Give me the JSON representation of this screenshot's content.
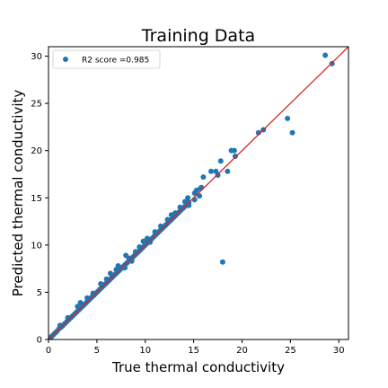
{
  "chart_data": {
    "type": "scatter",
    "title": "Training Data",
    "xlabel": "True thermal conductivity",
    "ylabel": "Predicted thermal conductivity",
    "xlim": [
      0,
      31
    ],
    "ylim": [
      0,
      31
    ],
    "xticks": [
      0,
      5,
      10,
      15,
      20,
      25,
      30
    ],
    "yticks": [
      0,
      5,
      10,
      15,
      20,
      25,
      30
    ],
    "grid": false,
    "legend_position": "top-left",
    "legend_label": "R2 score =0.985",
    "point_color": "#1f77b4",
    "reference_line": {
      "from": [
        0,
        0
      ],
      "to": [
        31,
        31
      ],
      "color": "#d62728"
    },
    "series": [
      {
        "name": "R2 score =0.985",
        "points": [
          [
            0.3,
            0.3
          ],
          [
            0.5,
            0.5
          ],
          [
            0.7,
            0.7
          ],
          [
            0.9,
            0.9
          ],
          [
            1.1,
            1.15
          ],
          [
            1.3,
            1.3
          ],
          [
            1.5,
            1.5
          ],
          [
            1.7,
            1.7
          ],
          [
            1.9,
            1.9
          ],
          [
            2.1,
            2.1
          ],
          [
            2.3,
            2.3
          ],
          [
            2.5,
            2.5
          ],
          [
            2.7,
            2.7
          ],
          [
            2.9,
            2.9
          ],
          [
            3.1,
            3.1
          ],
          [
            3.3,
            3.3
          ],
          [
            3.5,
            3.5
          ],
          [
            3.7,
            3.7
          ],
          [
            3.9,
            3.9
          ],
          [
            4.1,
            4.1
          ],
          [
            4.3,
            4.3
          ],
          [
            4.5,
            4.5
          ],
          [
            4.7,
            4.7
          ],
          [
            4.9,
            4.9
          ],
          [
            5.1,
            5.1
          ],
          [
            5.3,
            5.3
          ],
          [
            5.5,
            5.5
          ],
          [
            5.7,
            5.7
          ],
          [
            5.9,
            5.9
          ],
          [
            6.1,
            6.1
          ],
          [
            6.3,
            6.3
          ],
          [
            6.5,
            6.5
          ],
          [
            6.7,
            6.7
          ],
          [
            6.9,
            6.9
          ],
          [
            7.1,
            7.1
          ],
          [
            7.3,
            7.3
          ],
          [
            7.5,
            7.5
          ],
          [
            7.7,
            7.7
          ],
          [
            7.9,
            7.9
          ],
          [
            8.1,
            8.1
          ],
          [
            8.3,
            8.3
          ],
          [
            8.5,
            8.5
          ],
          [
            8.7,
            8.7
          ],
          [
            8.9,
            8.9
          ],
          [
            9.1,
            9.1
          ],
          [
            9.3,
            9.3
          ],
          [
            9.5,
            9.5
          ],
          [
            9.7,
            9.7
          ],
          [
            9.9,
            9.9
          ],
          [
            10.1,
            10.1
          ],
          [
            10.3,
            10.3
          ],
          [
            10.5,
            10.5
          ],
          [
            10.7,
            10.7
          ],
          [
            10.9,
            10.9
          ],
          [
            11.1,
            11.1
          ],
          [
            11.3,
            11.3
          ],
          [
            11.5,
            11.5
          ],
          [
            11.7,
            11.7
          ],
          [
            11.9,
            11.9
          ],
          [
            12.1,
            12.1
          ],
          [
            12.3,
            12.3
          ],
          [
            12.5,
            12.5
          ],
          [
            12.7,
            12.7
          ],
          [
            12.9,
            12.9
          ],
          [
            13.1,
            13.1
          ],
          [
            13.3,
            13.3
          ],
          [
            13.5,
            13.5
          ],
          [
            13.7,
            13.7
          ],
          [
            13.9,
            13.9
          ],
          [
            14.1,
            14.1
          ],
          [
            14.3,
            14.3
          ],
          [
            14.5,
            14.5
          ],
          [
            1.2,
            1.5
          ],
          [
            2.0,
            2.3
          ],
          [
            3.0,
            3.5
          ],
          [
            3.3,
            3.9
          ],
          [
            4.0,
            4.4
          ],
          [
            4.6,
            4.9
          ],
          [
            5.4,
            5.9
          ],
          [
            6.0,
            6.4
          ],
          [
            6.4,
            7.0
          ],
          [
            7.0,
            7.4
          ],
          [
            7.2,
            7.8
          ],
          [
            7.9,
            7.6
          ],
          [
            8.0,
            8.9
          ],
          [
            8.3,
            8.6
          ],
          [
            8.6,
            8.3
          ],
          [
            9.0,
            9.3
          ],
          [
            9.4,
            9.8
          ],
          [
            9.8,
            10.4
          ],
          [
            10.2,
            10.7
          ],
          [
            10.5,
            10.3
          ],
          [
            11.0,
            11.4
          ],
          [
            11.6,
            12.0
          ],
          [
            12.3,
            12.7
          ],
          [
            12.7,
            13.2
          ],
          [
            13.1,
            13.4
          ],
          [
            13.6,
            14.0
          ],
          [
            14.1,
            14.6
          ],
          [
            14.4,
            15.0
          ],
          [
            14.5,
            14.2
          ],
          [
            15.1,
            15.5
          ],
          [
            15.3,
            15.8
          ],
          [
            15.8,
            16.1
          ],
          [
            15.1,
            14.8
          ],
          [
            15.6,
            15.2
          ],
          [
            15.7,
            16.0
          ],
          [
            16.0,
            17.2
          ],
          [
            16.8,
            17.8
          ],
          [
            17.3,
            17.8
          ],
          [
            17.8,
            18.9
          ],
          [
            17.5,
            17.4
          ],
          [
            18.5,
            17.8
          ],
          [
            18.9,
            20.0
          ],
          [
            19.2,
            20.0
          ],
          [
            19.3,
            19.4
          ],
          [
            21.7,
            21.9
          ],
          [
            22.2,
            22.2
          ],
          [
            24.7,
            23.4
          ],
          [
            25.2,
            21.9
          ],
          [
            28.6,
            30.1
          ],
          [
            29.3,
            29.2
          ],
          [
            18.0,
            8.2
          ]
        ]
      }
    ]
  }
}
